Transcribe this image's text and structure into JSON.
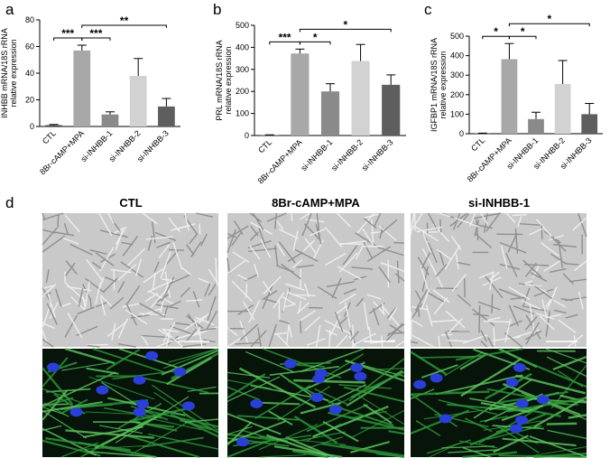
{
  "panel_labels": [
    "a",
    "b",
    "c",
    "d"
  ],
  "chart_data": [
    {
      "type": "bar",
      "ylabel": [
        "INHBB mRNA/18S rRNA",
        "relative expression"
      ],
      "categories": [
        "CTL",
        "8Br-cAMP+MPA",
        "si-INHBB-1",
        "si-INHBB-2",
        "si-INHBB-3"
      ],
      "values": [
        1,
        57,
        9,
        38,
        15
      ],
      "errors": [
        0.5,
        4,
        2,
        13,
        6
      ],
      "colors": [
        "#4a4a4a",
        "#a8a8a8",
        "#8a8a8a",
        "#d2d2d2",
        "#5e5e5e"
      ],
      "ylim": [
        0,
        80
      ],
      "yticks": [
        0,
        20,
        40,
        60,
        80
      ],
      "significance": [
        {
          "between": [
            "CTL",
            "8Br-cAMP+MPA"
          ],
          "label": "***"
        },
        {
          "between": [
            "8Br-cAMP+MPA",
            "si-INHBB-1"
          ],
          "label": "***"
        },
        {
          "between": [
            "8Br-cAMP+MPA",
            "si-INHBB-3"
          ],
          "label": "**"
        }
      ]
    },
    {
      "type": "bar",
      "ylabel": [
        "PRL mRNA/18S rRNA",
        "relative expression"
      ],
      "categories": [
        "CTL",
        "8Br-cAMP+MPA",
        "si-INHBB-1",
        "si-INHBB-2",
        "si-INHBB-3"
      ],
      "values": [
        2,
        372,
        200,
        338,
        230
      ],
      "errors": [
        1,
        20,
        35,
        75,
        45
      ],
      "colors": [
        "#4a4a4a",
        "#a8a8a8",
        "#8a8a8a",
        "#d2d2d2",
        "#5e5e5e"
      ],
      "ylim": [
        0,
        500
      ],
      "yticks": [
        0,
        100,
        200,
        300,
        400,
        500
      ],
      "significance": [
        {
          "between": [
            "CTL",
            "8Br-cAMP+MPA"
          ],
          "label": "***"
        },
        {
          "between": [
            "8Br-cAMP+MPA",
            "si-INHBB-1"
          ],
          "label": "*"
        },
        {
          "between": [
            "8Br-cAMP+MPA",
            "si-INHBB-3"
          ],
          "label": "*"
        }
      ]
    },
    {
      "type": "bar",
      "ylabel": [
        "IGFBP1 mRNA/18S rRNA",
        "relative expression"
      ],
      "categories": [
        "CTL",
        "8Br-cAMP+MPA",
        "si-INHBB-1",
        "si-INHBB-2",
        "si-INHBB-3"
      ],
      "values": [
        2,
        382,
        75,
        255,
        100
      ],
      "errors": [
        1,
        80,
        35,
        120,
        55
      ],
      "colors": [
        "#4a4a4a",
        "#a8a8a8",
        "#8a8a8a",
        "#d2d2d2",
        "#5e5e5e"
      ],
      "ylim": [
        0,
        500
      ],
      "yticks": [
        0,
        100,
        200,
        300,
        400,
        500
      ],
      "significance": [
        {
          "between": [
            "CTL",
            "8Br-cAMP+MPA"
          ],
          "label": "*"
        },
        {
          "between": [
            "8Br-cAMP+MPA",
            "si-INHBB-1"
          ],
          "label": "*"
        },
        {
          "between": [
            "8Br-cAMP+MPA",
            "si-INHBB-3"
          ],
          "label": "*"
        }
      ]
    }
  ],
  "image_panel": {
    "columns": [
      "CTL",
      "8Br-cAMP+MPA",
      "si-INHBB-1"
    ]
  }
}
